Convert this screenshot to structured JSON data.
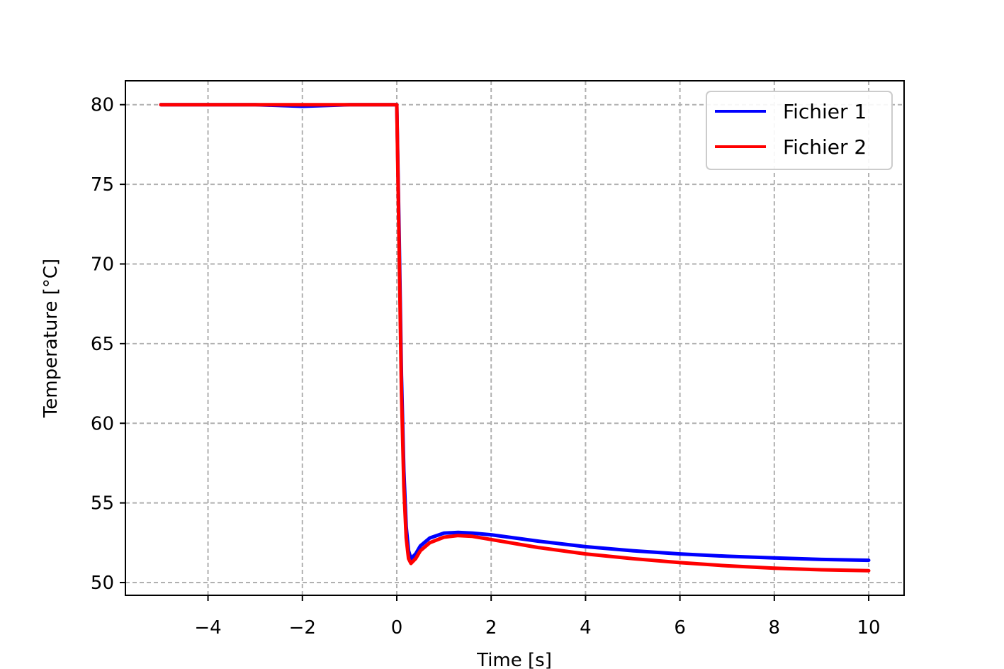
{
  "chart_data": {
    "type": "line",
    "title": "",
    "xlabel": "Time [s]",
    "ylabel": "Temperature [°C]",
    "xlim": [
      -5.75,
      10.75
    ],
    "ylim": [
      49.2,
      81.5
    ],
    "xticks": [
      -4,
      -2,
      0,
      2,
      4,
      6,
      8,
      10
    ],
    "xtick_labels": [
      "−4",
      "−2",
      "0",
      "2",
      "4",
      "6",
      "8",
      "10"
    ],
    "yticks": [
      50,
      55,
      60,
      65,
      70,
      75,
      80
    ],
    "ytick_labels": [
      "50",
      "55",
      "60",
      "65",
      "70",
      "75",
      "80"
    ],
    "grid": true,
    "legend_position": "top-right",
    "series": [
      {
        "name": "Fichier 1",
        "color": "#0000ff",
        "x": [
          -5.0,
          -4.0,
          -3.0,
          -2.0,
          -1.0,
          -0.1,
          0.0,
          0.05,
          0.1,
          0.15,
          0.2,
          0.25,
          0.3,
          0.4,
          0.5,
          0.7,
          1.0,
          1.3,
          1.6,
          2.0,
          3.0,
          4.0,
          5.0,
          6.0,
          7.0,
          8.0,
          9.0,
          10.0
        ],
        "y": [
          80.0,
          80.0,
          80.0,
          79.9,
          80.0,
          80.0,
          80.0,
          72.0,
          63.0,
          57.0,
          53.5,
          52.0,
          51.5,
          51.8,
          52.3,
          52.8,
          53.1,
          53.15,
          53.1,
          53.0,
          52.6,
          52.25,
          52.0,
          51.8,
          51.65,
          51.55,
          51.45,
          51.4
        ]
      },
      {
        "name": "Fichier 2",
        "color": "#ff0000",
        "x": [
          -5.0,
          -4.0,
          -3.0,
          -2.0,
          -1.0,
          -0.1,
          0.0,
          0.05,
          0.1,
          0.15,
          0.2,
          0.25,
          0.3,
          0.4,
          0.5,
          0.7,
          1.0,
          1.3,
          1.6,
          2.0,
          3.0,
          4.0,
          5.0,
          6.0,
          7.0,
          8.0,
          9.0,
          10.0
        ],
        "y": [
          80.0,
          80.0,
          80.0,
          80.0,
          80.0,
          80.0,
          80.0,
          71.0,
          62.0,
          56.0,
          52.8,
          51.5,
          51.2,
          51.5,
          52.0,
          52.5,
          52.85,
          52.95,
          52.9,
          52.7,
          52.2,
          51.8,
          51.5,
          51.25,
          51.05,
          50.9,
          50.8,
          50.75
        ]
      }
    ]
  }
}
